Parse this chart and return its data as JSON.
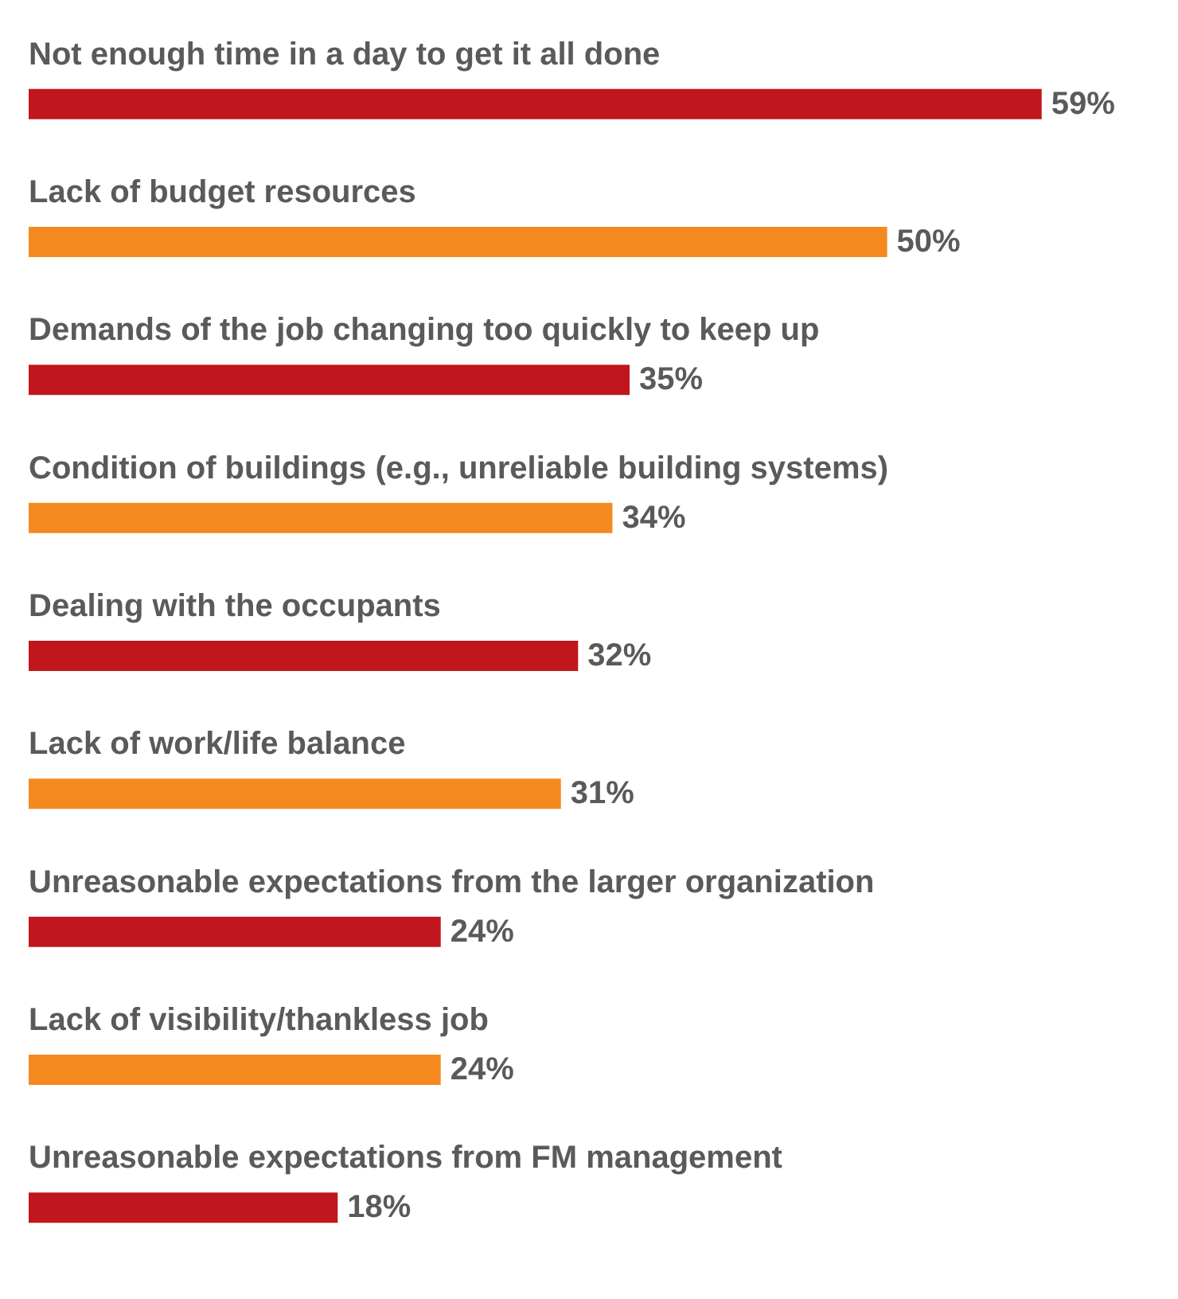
{
  "chart_data": {
    "type": "bar",
    "orientation": "horizontal",
    "categories": [
      "Not enough time in a day to get it all done",
      "Lack of budget resources",
      "Demands of the job changing too quickly to keep up",
      "Condition of buildings (e.g., unreliable building systems)",
      "Dealing with the occupants",
      "Lack of work/life balance",
      "Unreasonable expectations from the larger organization",
      "Lack of visibility/thankless job",
      "Unreasonable expectations from FM management"
    ],
    "values": [
      59,
      50,
      35,
      34,
      32,
      31,
      24,
      24,
      18
    ],
    "colors": [
      "#c1161d",
      "#f48a1f",
      "#c1161d",
      "#f48a1f",
      "#c1161d",
      "#f48a1f",
      "#c1161d",
      "#f48a1f",
      "#c1161d"
    ],
    "value_labels": [
      "59%",
      "50%",
      "35%",
      "34%",
      "32%",
      "31%",
      "24%",
      "24%",
      "18%"
    ]
  }
}
